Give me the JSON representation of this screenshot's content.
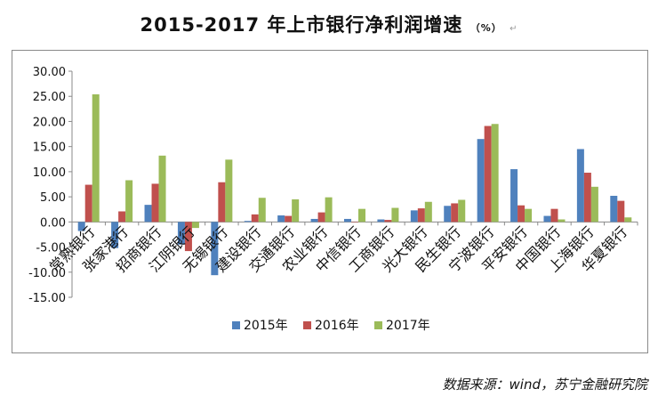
{
  "title": {
    "text": "2015-2017 年上市银行净利润增速",
    "unit": "（%）",
    "mark": "↵"
  },
  "source_note": "数据来源：wind，苏宁金融研究院",
  "colors": {
    "s2015": "#4F81BD",
    "s2016": "#C0504D",
    "s2017": "#9BBB59",
    "axis": "#8a8a8a"
  },
  "chart_data": {
    "type": "bar",
    "title": "2015-2017 年上市银行净利润增速（%）",
    "categories": [
      "常熟银行",
      "张家港行",
      "招商银行",
      "江阴银行",
      "无锡银行",
      "建设银行",
      "交通银行",
      "农业银行",
      "中信银行",
      "工商银行",
      "光大银行",
      "民生银行",
      "宁波银行",
      "平安银行",
      "中国银行",
      "上海银行",
      "华夏银行"
    ],
    "series": [
      {
        "name": "2015年",
        "values": [
          -1.8,
          -5.2,
          3.4,
          -4.5,
          -10.6,
          0.2,
          1.3,
          0.6,
          0.6,
          0.5,
          2.3,
          3.2,
          16.5,
          10.5,
          1.2,
          14.5,
          5.2
        ]
      },
      {
        "name": "2016年",
        "values": [
          7.4,
          2.1,
          7.6,
          -5.8,
          7.9,
          1.5,
          1.2,
          1.9,
          0.0,
          0.4,
          2.7,
          3.7,
          19.1,
          3.3,
          2.6,
          9.8,
          4.2
        ]
      },
      {
        "name": "2017年",
        "values": [
          25.4,
          8.3,
          13.2,
          -1.2,
          12.4,
          4.8,
          4.5,
          4.9,
          2.6,
          2.8,
          4.0,
          4.4,
          19.5,
          2.6,
          0.5,
          7.0,
          0.9
        ]
      }
    ],
    "ylim": [
      -15,
      30
    ],
    "yticks": [
      "30.00",
      "25.00",
      "20.00",
      "15.00",
      "10.00",
      "5.00",
      "0.00",
      "-5.00",
      "-10.00",
      "-15.00"
    ],
    "grid": false,
    "legend": "bottom"
  }
}
